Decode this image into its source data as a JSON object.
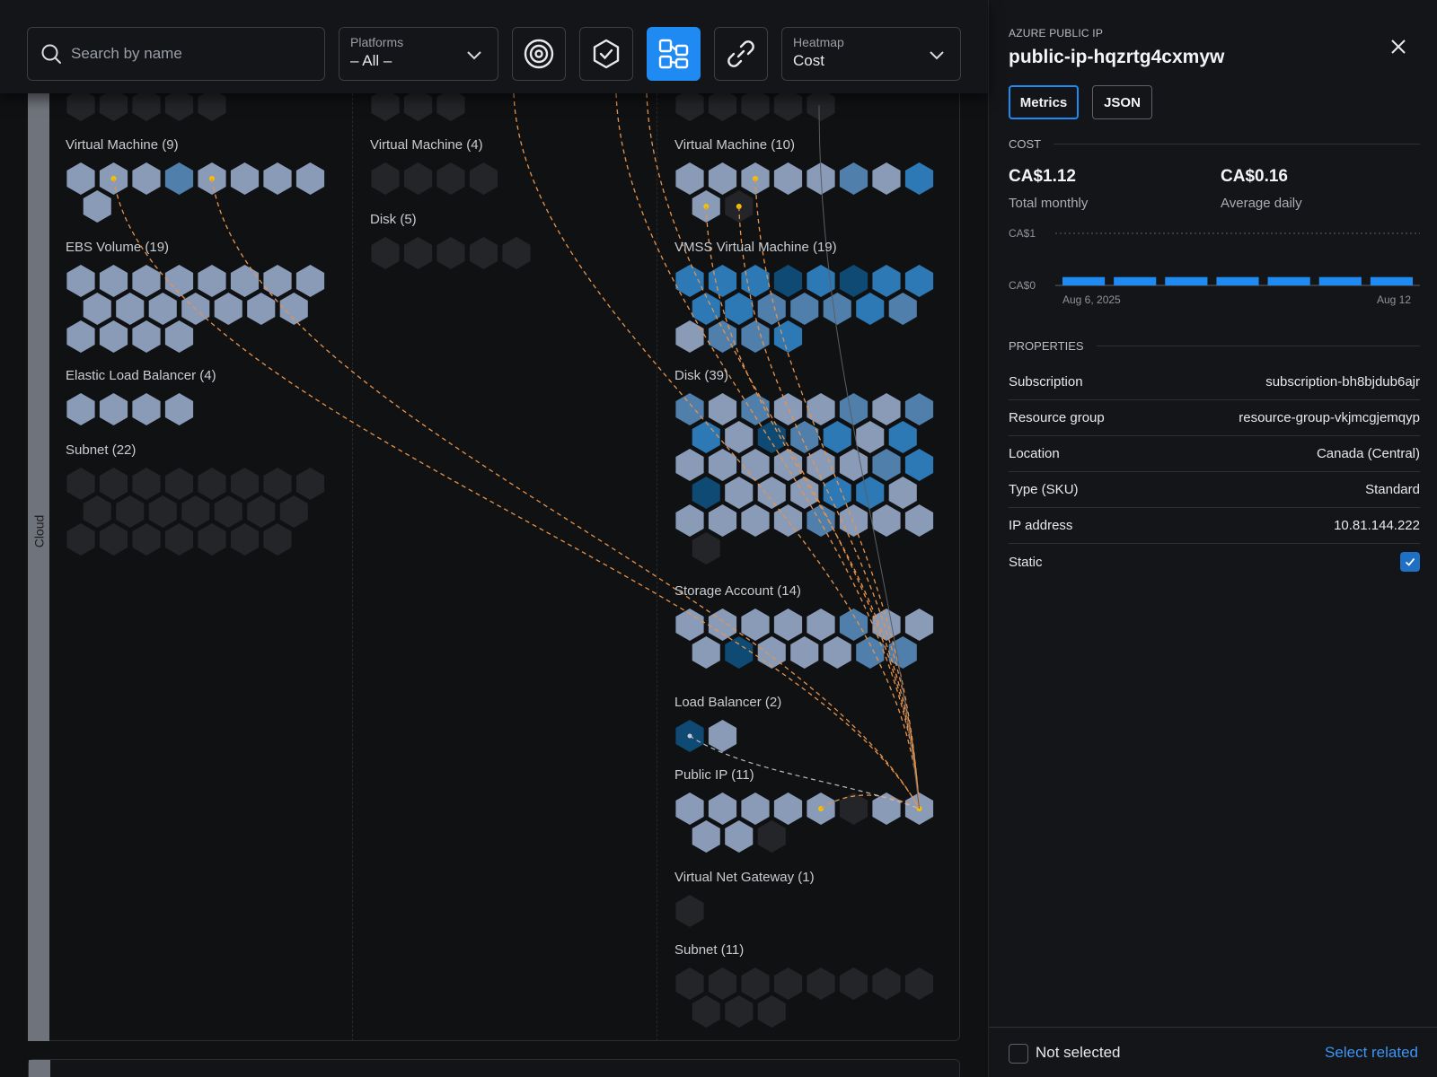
{
  "toolbar": {
    "search_placeholder": "Search by name",
    "platforms": {
      "label": "Platforms",
      "value": "– All –"
    },
    "heatmap": {
      "label": "Heatmap",
      "value": "Cost"
    },
    "icons": [
      "target-icon",
      "shield-hex-icon",
      "topology-icon",
      "link-icon"
    ]
  },
  "canvas": {
    "rail_label": "Cloud",
    "groups": [
      {
        "id": "aws-vm",
        "label": "Virtual Machine (9)",
        "col": 0
      },
      {
        "id": "aws-ebs",
        "label": "EBS Volume (19)",
        "col": 0
      },
      {
        "id": "aws-elb",
        "label": "Elastic Load Balancer (4)",
        "col": 0
      },
      {
        "id": "aws-subnet",
        "label": "Subnet (22)",
        "col": 0
      },
      {
        "id": "gcp-vm",
        "label": "Virtual Machine (4)",
        "col": 1
      },
      {
        "id": "gcp-disk",
        "label": "Disk (5)",
        "col": 1
      },
      {
        "id": "az-vm",
        "label": "Virtual Machine (10)",
        "col": 2
      },
      {
        "id": "az-vmss",
        "label": "VMSS Virtual Machine (19)",
        "col": 2
      },
      {
        "id": "az-disk",
        "label": "Disk (39)",
        "col": 2
      },
      {
        "id": "az-storage",
        "label": "Storage Account (14)",
        "col": 2
      },
      {
        "id": "az-lb",
        "label": "Load Balancer (2)",
        "col": 2
      },
      {
        "id": "az-pip",
        "label": "Public IP (11)",
        "col": 2
      },
      {
        "id": "az-vng",
        "label": "Virtual Net Gateway (1)",
        "col": 2
      },
      {
        "id": "az-subnet",
        "label": "Subnet (11)",
        "col": 2
      }
    ]
  },
  "panel": {
    "kind": "AZURE PUBLIC IP",
    "title": "public-ip-hqzrtg4cxmyw",
    "tabs": [
      "Metrics",
      "JSON"
    ],
    "cost": {
      "heading": "COST",
      "total_value": "CA$1.12",
      "total_label": "Total monthly",
      "avg_value": "CA$0.16",
      "avg_label": "Average daily"
    },
    "chart_data": {
      "type": "bar",
      "y_tick_labels": [
        "CA$1",
        "CA$0"
      ],
      "x_tick_labels": [
        "Aug 6, 2025",
        "Aug 12"
      ],
      "values": [
        0.16,
        0.16,
        0.16,
        0.16,
        0.16,
        0.16,
        0.16
      ],
      "ylim": [
        0,
        1
      ],
      "bar_color": "#1f8bf2"
    },
    "properties_heading": "PROPERTIES",
    "properties": [
      {
        "key": "Subscription",
        "value": "subscription-bh8bjdub6ajr"
      },
      {
        "key": "Resource group",
        "value": "resource-group-vkjmcgjemqyp"
      },
      {
        "key": "Location",
        "value": "Canada (Central)"
      },
      {
        "key": "Type (SKU)",
        "value": "Standard"
      },
      {
        "key": "IP address",
        "value": "10.81.144.222"
      },
      {
        "key": "Static",
        "value": ""
      }
    ],
    "footer": {
      "not_selected": "Not selected",
      "select_related": "Select related"
    }
  },
  "colors": {
    "accent": "#1f8bf2",
    "edge": "#e8934a",
    "node_dot": "#f2c200"
  }
}
